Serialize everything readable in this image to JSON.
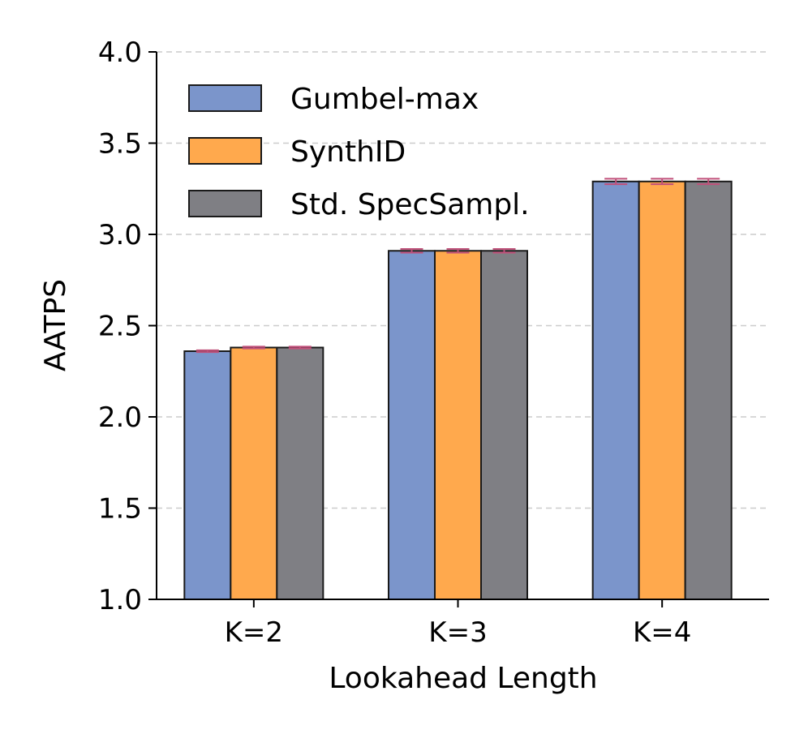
{
  "chart_data": {
    "type": "bar",
    "title": "",
    "xlabel": "Lookahead Length",
    "ylabel": "AATPS",
    "categories": [
      "K=2",
      "K=3",
      "K=4"
    ],
    "ylim": [
      1.0,
      4.0
    ],
    "yticks": [
      1.0,
      1.5,
      2.0,
      2.5,
      3.0,
      3.5,
      4.0
    ],
    "ytick_labels": [
      "1.0",
      "1.5",
      "2.0",
      "2.5",
      "3.0",
      "3.5",
      "4.0"
    ],
    "grid": "y-dashed",
    "legend_position": "top-left",
    "series": [
      {
        "name": "Gumbel-max",
        "color": "#7b95cb",
        "values": [
          2.36,
          2.91,
          3.29
        ],
        "errors": [
          0.005,
          0.01,
          0.015
        ]
      },
      {
        "name": "SynthID",
        "color": "#ffa94d",
        "values": [
          2.38,
          2.91,
          3.29
        ],
        "errors": [
          0.005,
          0.01,
          0.015
        ]
      },
      {
        "name": "Std. SpecSampl.",
        "color": "#7f7f84",
        "values": [
          2.38,
          2.91,
          3.29
        ],
        "errors": [
          0.005,
          0.01,
          0.015
        ]
      }
    ],
    "error_bar_color": "#c0507a"
  }
}
